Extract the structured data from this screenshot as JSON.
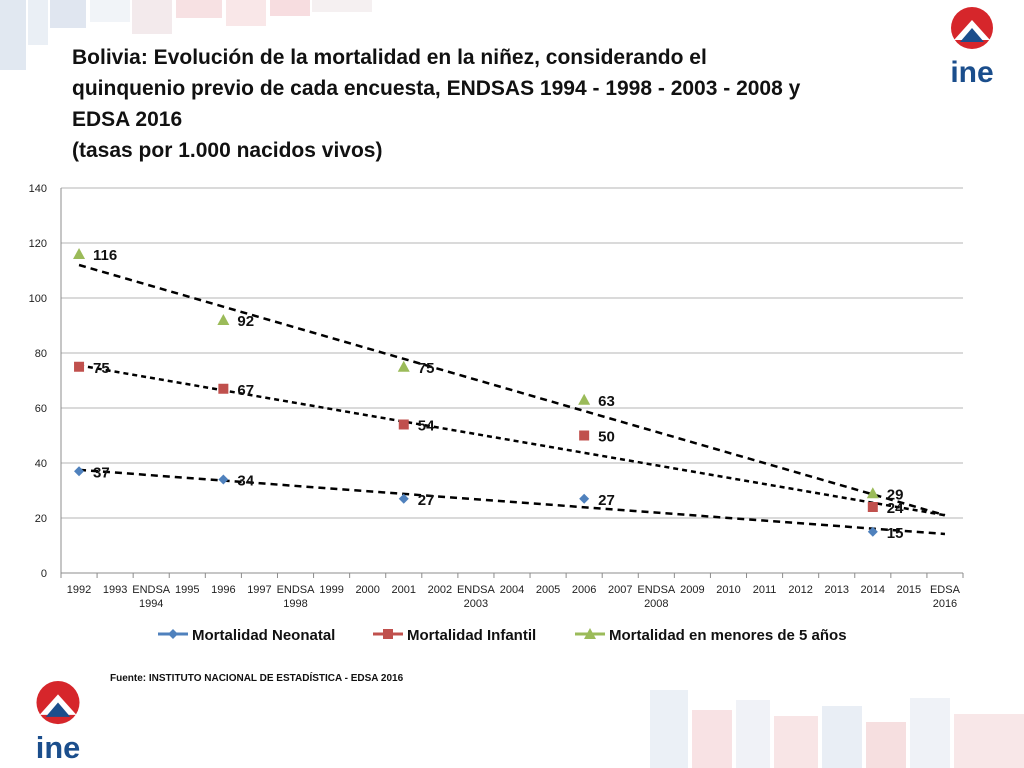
{
  "title": {
    "lines": [
      "Bolivia: Evolución de la mortalidad en la niñez, considerando el",
      "quinquenio previo de cada encuesta, ENDSAS 1994 - 1998 - 2003 - 2008 y",
      "EDSA 2016",
      "(tasas por 1.000 nacidos vivos)"
    ]
  },
  "logo": {
    "text": "ine",
    "icon": "ine-logo-icon"
  },
  "source": "Fuente: INSTITUTO NACIONAL DE ESTADÍSTICA - EDSA 2016",
  "colors": {
    "neonatal": "#4F81BD",
    "infantil": "#C0504D",
    "menores5": "#9BBB59",
    "logo_red": "#D6262B",
    "logo_blue": "#1B4E8C",
    "grid": "#B5B5B5",
    "trend": "#000000"
  },
  "chart_data": {
    "type": "line",
    "title": "",
    "xlabel": "",
    "ylabel": "",
    "ylim": [
      0,
      140
    ],
    "yticks": [
      0,
      20,
      40,
      60,
      80,
      100,
      120,
      140
    ],
    "grid": true,
    "legend_position": "bottom",
    "categories": [
      [
        "1992"
      ],
      [
        "1993"
      ],
      [
        "ENDSA",
        "1994"
      ],
      [
        "1995"
      ],
      [
        "1996"
      ],
      [
        "1997"
      ],
      [
        "ENDSA",
        "1998"
      ],
      [
        "1999"
      ],
      [
        "2000"
      ],
      [
        "2001"
      ],
      [
        "2002"
      ],
      [
        "ENDSA",
        "2003"
      ],
      [
        "2004"
      ],
      [
        "2005"
      ],
      [
        "2006"
      ],
      [
        "2007"
      ],
      [
        "ENDSA",
        "2008"
      ],
      [
        "2009"
      ],
      [
        "2010"
      ],
      [
        "2011"
      ],
      [
        "2012"
      ],
      [
        "2013"
      ],
      [
        "2014"
      ],
      [
        "2015"
      ],
      [
        "EDSA",
        "2016"
      ]
    ],
    "series": [
      {
        "name": "Mortalidad Neonatal",
        "marker": "diamond",
        "color_key": "neonatal",
        "points": [
          [
            0,
            37
          ],
          [
            4,
            34
          ],
          [
            9,
            27
          ],
          [
            14,
            27
          ],
          [
            22,
            15
          ]
        ],
        "trend": [
          [
            0,
            37.5
          ],
          [
            24,
            14.2
          ]
        ]
      },
      {
        "name": "Mortalidad Infantil",
        "marker": "square",
        "color_key": "infantil",
        "points": [
          [
            0,
            75
          ],
          [
            4,
            67
          ],
          [
            9,
            54
          ],
          [
            14,
            50
          ],
          [
            22,
            24
          ]
        ],
        "trend": [
          [
            0,
            75.5
          ],
          [
            24,
            21
          ]
        ]
      },
      {
        "name": "Mortalidad en menores de 5 años",
        "marker": "triangle",
        "color_key": "menores5",
        "points": [
          [
            0,
            116
          ],
          [
            4,
            92
          ],
          [
            9,
            75
          ],
          [
            14,
            63
          ],
          [
            22,
            29
          ]
        ],
        "trend": [
          [
            0,
            112
          ],
          [
            24,
            21
          ]
        ]
      }
    ]
  }
}
